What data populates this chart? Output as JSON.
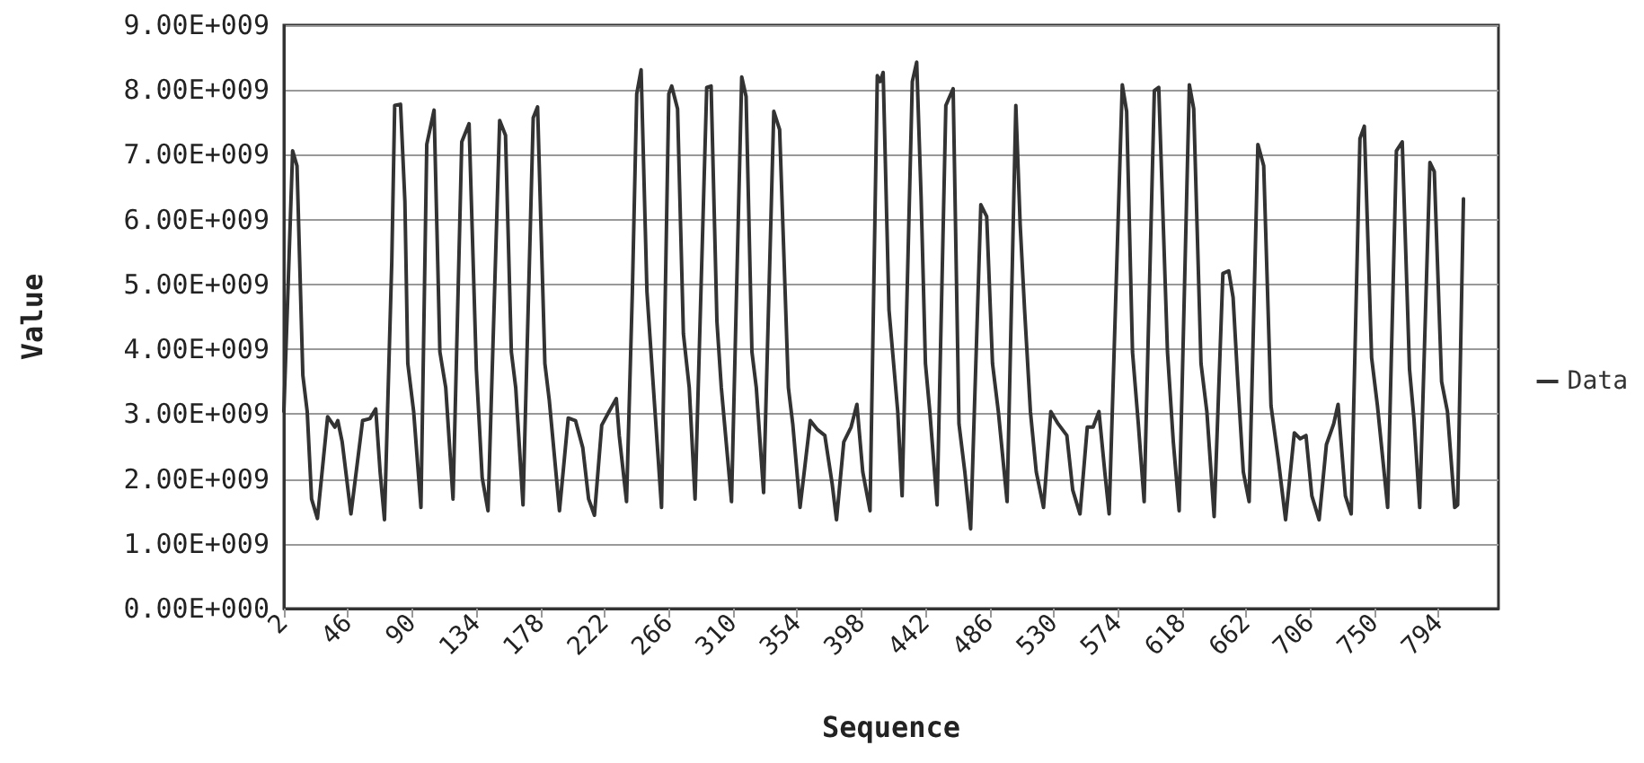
{
  "chart_data": {
    "type": "line",
    "xlabel": "Sequence",
    "ylabel": "Value",
    "grid": "y",
    "legend": "right",
    "marker": "none",
    "line_style": "solid",
    "xlim": [
      2,
      835
    ],
    "xticks": [
      2,
      46,
      90,
      134,
      178,
      222,
      266,
      310,
      354,
      398,
      442,
      486,
      530,
      574,
      618,
      662,
      706,
      750,
      794
    ],
    "ylim": [
      0,
      9000000000.0
    ],
    "yticks": [
      {
        "value": 0,
        "label": "0.00E+000"
      },
      {
        "value": 1000000000.0,
        "label": "1.00E+009"
      },
      {
        "value": 2000000000.0,
        "label": "2.00E+009"
      },
      {
        "value": 3000000000.0,
        "label": "3.00E+009"
      },
      {
        "value": 4000000000.0,
        "label": "4.00E+009"
      },
      {
        "value": 5000000000.0,
        "label": "5.00E+009"
      },
      {
        "value": 6000000000.0,
        "label": "6.00E+009"
      },
      {
        "value": 7000000000.0,
        "label": "7.00E+009"
      },
      {
        "value": 8000000000.0,
        "label": "8.00E+009"
      },
      {
        "value": 9000000000.0,
        "label": "9.00E+009"
      }
    ],
    "series": [
      {
        "name": "Data",
        "color": "#333333",
        "x": [
          2,
          8,
          11,
          15,
          18,
          21,
          25,
          32,
          37,
          39,
          42,
          48,
          56,
          61,
          65,
          68,
          71,
          76,
          78,
          82,
          85,
          87,
          91,
          96,
          100,
          105,
          109,
          113,
          118,
          124,
          129,
          134,
          138,
          142,
          150,
          154,
          158,
          161,
          166,
          173,
          176,
          181,
          184,
          191,
          197,
          202,
          207,
          211,
          215,
          220,
          225,
          230,
          232,
          237,
          241,
          244,
          247,
          251,
          255,
          261,
          266,
          268,
          272,
          276,
          280,
          284,
          292,
          295,
          299,
          302,
          309,
          316,
          319,
          323,
          326,
          331,
          338,
          342,
          348,
          351,
          356,
          363,
          368,
          373,
          378,
          381,
          386,
          391,
          395,
          399,
          404,
          409,
          411,
          413,
          417,
          423,
          426,
          433,
          436,
          439,
          442,
          445,
          450,
          456,
          461,
          465,
          469,
          473,
          480,
          484,
          488,
          492,
          498,
          504,
          507,
          510,
          514,
          518,
          523,
          528,
          533,
          539,
          543,
          548,
          553,
          557,
          561,
          565,
          568,
          577,
          580,
          584,
          588,
          592,
          599,
          602,
          608,
          612,
          616,
          623,
          626,
          631,
          635,
          640,
          646,
          650,
          653,
          656,
          660,
          664,
          670,
          674,
          679,
          684,
          689,
          695,
          699,
          703,
          707,
          712,
          717,
          722,
          725,
          730,
          734,
          740,
          743,
          748,
          752,
          759,
          765,
          769,
          774,
          777,
          781,
          788,
          791,
          796,
          800,
          805,
          807,
          811
        ],
        "values": [
          3040000000.0,
          7060000000.0,
          6830000000.0,
          3600000000.0,
          3040000000.0,
          1690000000.0,
          1390000000.0,
          2960000000.0,
          2800000000.0,
          2900000000.0,
          2570000000.0,
          1460000000.0,
          2900000000.0,
          2930000000.0,
          3080000000.0,
          2110000000.0,
          1370000000.0,
          5350000000.0,
          7760000000.0,
          7780000000.0,
          6280000000.0,
          3780000000.0,
          3040000000.0,
          1560000000.0,
          7160000000.0,
          7690000000.0,
          3960000000.0,
          3410000000.0,
          1690000000.0,
          7200000000.0,
          7480000000.0,
          3690000000.0,
          2020000000.0,
          1510000000.0,
          7530000000.0,
          7300000000.0,
          3960000000.0,
          3410000000.0,
          1600000000.0,
          7570000000.0,
          7740000000.0,
          3780000000.0,
          3220000000.0,
          1510000000.0,
          2940000000.0,
          2900000000.0,
          2480000000.0,
          1690000000.0,
          1440000000.0,
          2830000000.0,
          3040000000.0,
          3240000000.0,
          2670000000.0,
          1650000000.0,
          4890000000.0,
          7940000000.0,
          8310000000.0,
          4890000000.0,
          3550000000.0,
          1560000000.0,
          7940000000.0,
          8060000000.0,
          7710000000.0,
          4240000000.0,
          3410000000.0,
          1690000000.0,
          8040000000.0,
          8060000000.0,
          4430000000.0,
          3410000000.0,
          1650000000.0,
          8200000000.0,
          7900000000.0,
          3960000000.0,
          3410000000.0,
          1790000000.0,
          7670000000.0,
          7390000000.0,
          3410000000.0,
          2850000000.0,
          1560000000.0,
          2900000000.0,
          2760000000.0,
          2670000000.0,
          1930000000.0,
          1370000000.0,
          2570000000.0,
          2800000000.0,
          3150000000.0,
          2110000000.0,
          1510000000.0,
          8220000000.0,
          8130000000.0,
          8270000000.0,
          4610000000.0,
          3040000000.0,
          1740000000.0,
          8130000000.0,
          8430000000.0,
          6370000000.0,
          3780000000.0,
          3040000000.0,
          1600000000.0,
          7760000000.0,
          8020000000.0,
          2850000000.0,
          2110000000.0,
          1230000000.0,
          6230000000.0,
          6050000000.0,
          3780000000.0,
          3040000000.0,
          1650000000.0,
          7760000000.0,
          5910000000.0,
          4610000000.0,
          3040000000.0,
          2110000000.0,
          1560000000.0,
          3040000000.0,
          2850000000.0,
          2670000000.0,
          1830000000.0,
          1460000000.0,
          2800000000.0,
          2800000000.0,
          3040000000.0,
          2110000000.0,
          1460000000.0,
          8080000000.0,
          7670000000.0,
          3960000000.0,
          2850000000.0,
          1650000000.0,
          7990000000.0,
          8040000000.0,
          3960000000.0,
          2570000000.0,
          1510000000.0,
          8080000000.0,
          7710000000.0,
          3780000000.0,
          3040000000.0,
          1420000000.0,
          5170000000.0,
          5210000000.0,
          4800000000.0,
          3590000000.0,
          2110000000.0,
          1650000000.0,
          7160000000.0,
          6830000000.0,
          3130000000.0,
          2300000000.0,
          1370000000.0,
          2710000000.0,
          2620000000.0,
          2670000000.0,
          1740000000.0,
          1370000000.0,
          2530000000.0,
          2850000000.0,
          3150000000.0,
          1740000000.0,
          1460000000.0,
          7250000000.0,
          7440000000.0,
          3870000000.0,
          3130000000.0,
          1560000000.0,
          7060000000.0,
          7200000000.0,
          3690000000.0,
          2940000000.0,
          1560000000.0,
          6880000000.0,
          6740000000.0,
          3500000000.0,
          3040000000.0,
          1560000000.0,
          1600000000.0,
          6320000000.0
        ]
      }
    ]
  }
}
